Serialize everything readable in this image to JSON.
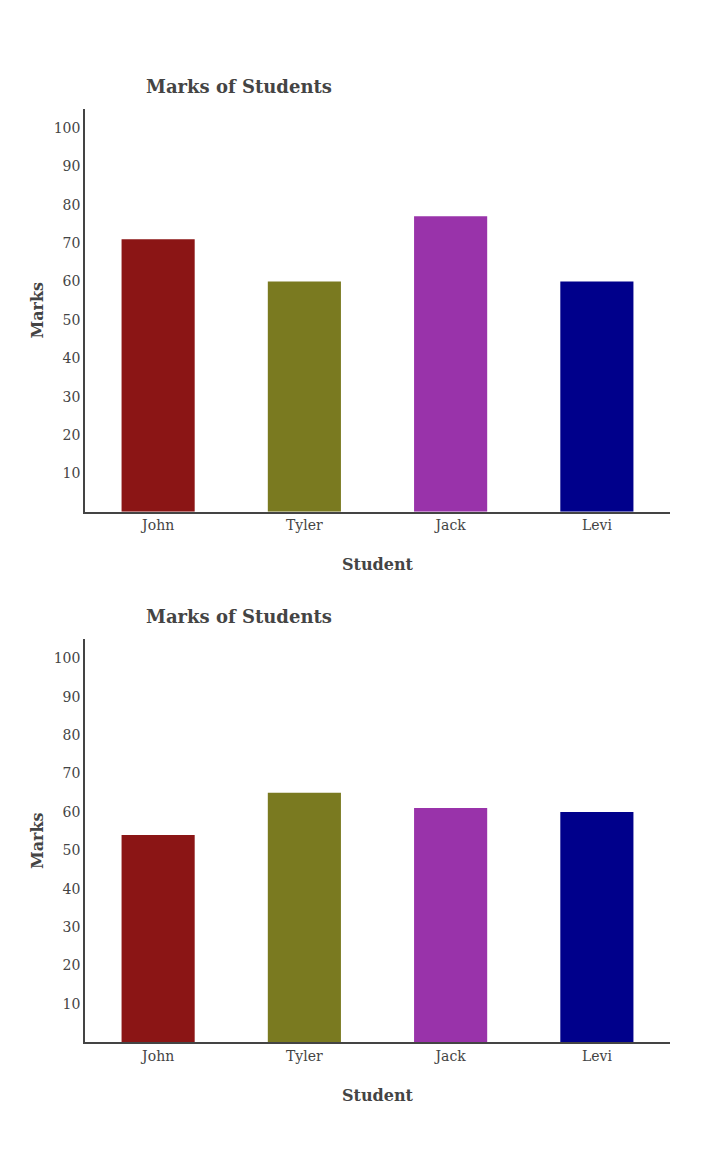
{
  "chart_data": [
    {
      "type": "bar",
      "title": "Marks of Students",
      "categories": [
        "John",
        "Tyler",
        "Jack",
        "Levi"
      ],
      "values": [
        71,
        60,
        77,
        60
      ],
      "colors": [
        "#8B1515",
        "#7A7A20",
        "#9933AA",
        "#00008B"
      ],
      "xlabel": "Student",
      "ylabel": "Marks",
      "ylim": [
        0,
        105
      ],
      "yticks": [
        10,
        20,
        30,
        40,
        50,
        60,
        70,
        80,
        90,
        100
      ],
      "grid": false
    },
    {
      "type": "bar",
      "title": "Marks of Students",
      "categories": [
        "John",
        "Tyler",
        "Jack",
        "Levi"
      ],
      "values": [
        54,
        65,
        61,
        60
      ],
      "colors": [
        "#8B1515",
        "#7A7A20",
        "#9933AA",
        "#00008B"
      ],
      "xlabel": "Student",
      "ylabel": "Marks",
      "ylim": [
        0,
        105
      ],
      "yticks": [
        10,
        20,
        30,
        40,
        50,
        60,
        70,
        80,
        90,
        100
      ],
      "grid": false
    }
  ]
}
